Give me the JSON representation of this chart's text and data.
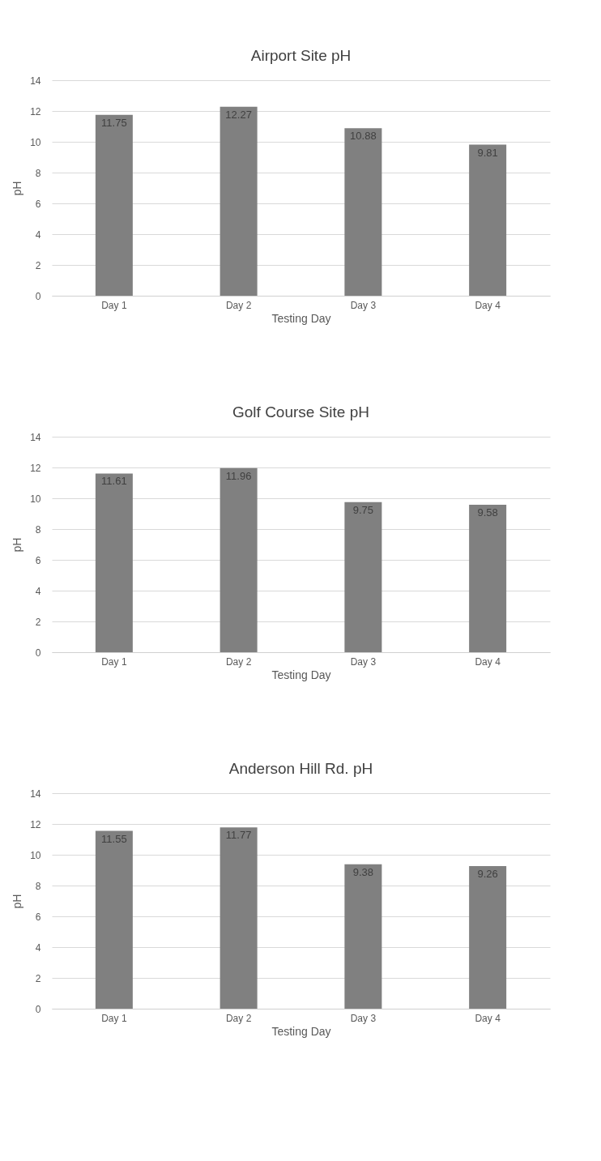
{
  "chart_data": [
    {
      "type": "bar",
      "title": "Airport Site pH",
      "xlabel": "Testing Day",
      "ylabel": "pH",
      "categories": [
        "Day 1",
        "Day 2",
        "Day 3",
        "Day 4"
      ],
      "values": [
        11.75,
        12.27,
        10.88,
        9.81
      ],
      "color": "#808080",
      "ylim": [
        0,
        14
      ],
      "yticks": [
        0,
        2,
        4,
        6,
        8,
        10,
        12,
        14
      ],
      "grid": "y",
      "data_labels": true
    },
    {
      "type": "bar",
      "title": "Golf Course Site  pH",
      "xlabel": "Testing Day",
      "ylabel": "pH",
      "categories": [
        "Day 1",
        "Day 2",
        "Day 3",
        "Day 4"
      ],
      "values": [
        11.61,
        11.96,
        9.75,
        9.58
      ],
      "color": "#808080",
      "ylim": [
        0,
        14
      ],
      "yticks": [
        0,
        2,
        4,
        6,
        8,
        10,
        12,
        14
      ],
      "grid": "y",
      "data_labels": true
    },
    {
      "type": "bar",
      "title": "Anderson Hill Rd. pH",
      "xlabel": "Testing Day",
      "ylabel": "pH",
      "categories": [
        "Day 1",
        "Day 2",
        "Day 3",
        "Day 4"
      ],
      "values": [
        11.55,
        11.77,
        9.38,
        9.26
      ],
      "color": "#808080",
      "ylim": [
        0,
        14
      ],
      "yticks": [
        0,
        2,
        4,
        6,
        8,
        10,
        12,
        14
      ],
      "grid": "y",
      "data_labels": true
    }
  ]
}
